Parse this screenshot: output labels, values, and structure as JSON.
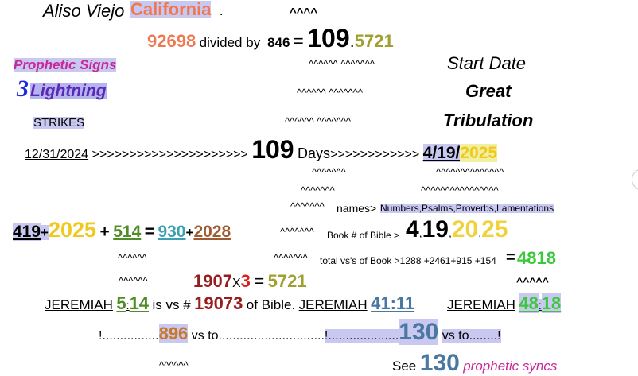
{
  "colors": {
    "accent_orange": "#f07850",
    "gold": "#c8a028",
    "magenta": "#c8289a",
    "highlight": "#c8c8f0"
  },
  "row1": {
    "city": "Aliso Viejo",
    "state": "California",
    "period": ".",
    "carets": "^^^^"
  },
  "row2": {
    "zip": "92698",
    "divided_by": "divided by",
    "divisor": "846",
    "equals": "=",
    "result_int": "109",
    "dot": ".",
    "result_dec": "5721"
  },
  "row3": {
    "label": "Prophetic Signs",
    "carets": "^^^^^^   ^^^^^^^",
    "right": "Start Date"
  },
  "row4": {
    "num": "3",
    "label": "Lightning",
    "carets": "^^^^^^   ^^^^^^^",
    "right": "Great"
  },
  "row5": {
    "label": "STRIKES",
    "carets": "^^^^^^   ^^^^^^^",
    "right": "Tribulation"
  },
  "row6": {
    "date": "12/31/2024",
    "arrows1": ">>>>>>>>>>>>>>>>>>>>>",
    "days_num": "109",
    "days_word": "Days",
    ">arrows2": "",
    "arrows2": ">>>>>>>>>>>>",
    "end_md": "4/19/",
    "end_year": "2025"
  },
  "row7": {
    "carets_a": "^^^^^^^",
    "carets_b": "^^^^^^^^^^^^^^"
  },
  "row8": {
    "carets_a": "^^^^^^^",
    "carets_b": "^^^^^^^^^^^^^^^^"
  },
  "row9": {
    "carets": "^^^^^^^",
    "names_label": "names>",
    "names_list": "Numbers,Psalms,Proverbs,Lamentations"
  },
  "row10": {
    "a": "419",
    "plus1": "+",
    "year": "2025",
    "plus2": "+",
    "b": "514",
    "eq": "=",
    "c1": "930",
    "c_plus": "+",
    "c2": "2028",
    "carets": "^^^^^^^",
    "book_label": "Book # of Bible >",
    "n1": "4",
    "n2": "19",
    "n3": "20",
    "n4": "25"
  },
  "row11": {
    "carets_a": "^^^^^^",
    "carets_b": "^^^^^^^",
    "total_label": "total vs's of Book >1288 +2461+915 +154",
    "eq": "=",
    "total": "4818"
  },
  "row12": {
    "carets_a": "^^^^^^",
    "a": "1907",
    "x": "X",
    "b": "3",
    "eq": "=",
    "result": "5721",
    "carets_b": "^^^^^"
  },
  "row13": {
    "book1": "JEREMIAH",
    "ch1": "5",
    "colon1": ":",
    "vs1": "14",
    "mid_text": "is vs #",
    "vs_num": "19073",
    "of_bible": "of Bible.",
    "book2": "JEREMIAH",
    "ref2": "41:11",
    "book3": "JEREMIAH",
    "ch3": "48",
    "colon3": ":",
    "vs3": "18"
  },
  "row14": {
    "dots1": "!................",
    "n1": "896",
    "to1": "vs to..............................",
    "dots2": "!....................",
    "n2": "130",
    "to2": "vs to........!"
  },
  "row15": {
    "carets": "^^^^^^",
    "see": "See",
    "n": "130",
    "link": "prophetic syncs"
  }
}
